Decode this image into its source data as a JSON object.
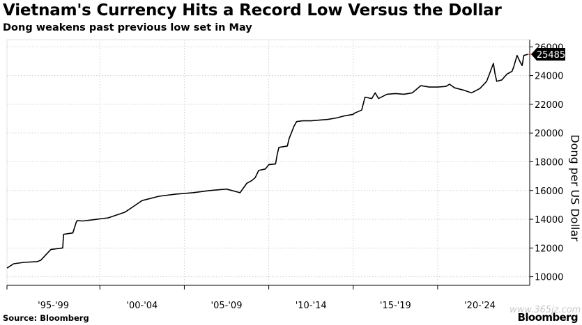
{
  "chart_data": {
    "type": "line",
    "title": "Vietnam's Currency Hits a Record Low Versus the Dollar",
    "subtitle": "Dong weakens past previous low set in May",
    "ylabel": "Dong per US Dollar",
    "source": "Source: Bloomberg",
    "brand": "Bloomberg",
    "watermark": "www.365jz.com",
    "current_value_label": "25485",
    "current_value": 25485,
    "x_tick_labels": [
      "'95-'99",
      "'00-'04",
      "'05-'09",
      "'10-'14",
      "'15-'19",
      "'20-'24"
    ],
    "y_tick_labels": [
      "10000",
      "12000",
      "14000",
      "16000",
      "18000",
      "20000",
      "22000",
      "24000",
      "26000"
    ],
    "y_ticks": [
      10000,
      12000,
      14000,
      16000,
      18000,
      20000,
      22000,
      24000,
      26000
    ],
    "ylim": [
      9400,
      26500
    ],
    "xlim": [
      1994.0,
      2024.95
    ],
    "grid": true,
    "series": [
      {
        "x": [
          1994.0,
          1994.4,
          1995.0,
          1995.8,
          1996.0,
          1996.6,
          1997.3,
          1997.35,
          1997.9,
          1998.1,
          1998.15,
          1998.5,
          1999.0,
          2000.0,
          2001.0,
          2001.5,
          2002.0,
          2003.0,
          2004.0,
          2005.0,
          2006.0,
          2007.0,
          2007.8,
          2008.2,
          2008.5,
          2008.7,
          2008.9,
          2009.3,
          2009.5,
          2009.9,
          2010.0,
          2010.1,
          2010.6,
          2010.7,
          2011.0,
          2011.15,
          2011.5,
          2012.0,
          2013.0,
          2013.5,
          2014.0,
          2014.5,
          2014.6,
          2015.0,
          2015.2,
          2015.6,
          2015.65,
          2015.8,
          2016.0,
          2016.5,
          2017.0,
          2017.5,
          2018.0,
          2018.5,
          2019.0,
          2019.5,
          2020.0,
          2020.2,
          2020.5,
          2021.0,
          2021.5,
          2022.0,
          2022.4,
          2022.8,
          2022.9,
          2023.0,
          2023.3,
          2023.6,
          2023.9,
          2024.0,
          2024.2,
          2024.4,
          2024.5,
          2024.6,
          2024.85
        ],
        "y": [
          10600,
          10900,
          11000,
          11050,
          11150,
          11900,
          12000,
          12950,
          13050,
          13800,
          13900,
          13880,
          13950,
          14100,
          14500,
          14900,
          15300,
          15600,
          15750,
          15850,
          16000,
          16100,
          15850,
          16500,
          16700,
          16900,
          17400,
          17500,
          17800,
          17850,
          18500,
          19000,
          19100,
          19600,
          20500,
          20800,
          20850,
          20850,
          20950,
          21050,
          21200,
          21300,
          21400,
          21600,
          22500,
          22400,
          22500,
          22800,
          22400,
          22700,
          22750,
          22700,
          22800,
          23300,
          23200,
          23200,
          23250,
          23400,
          23150,
          23000,
          22800,
          23100,
          23600,
          24850,
          24100,
          23600,
          23700,
          24100,
          24300,
          24600,
          25400,
          24900,
          24700,
          25400,
          25485
        ]
      }
    ]
  }
}
